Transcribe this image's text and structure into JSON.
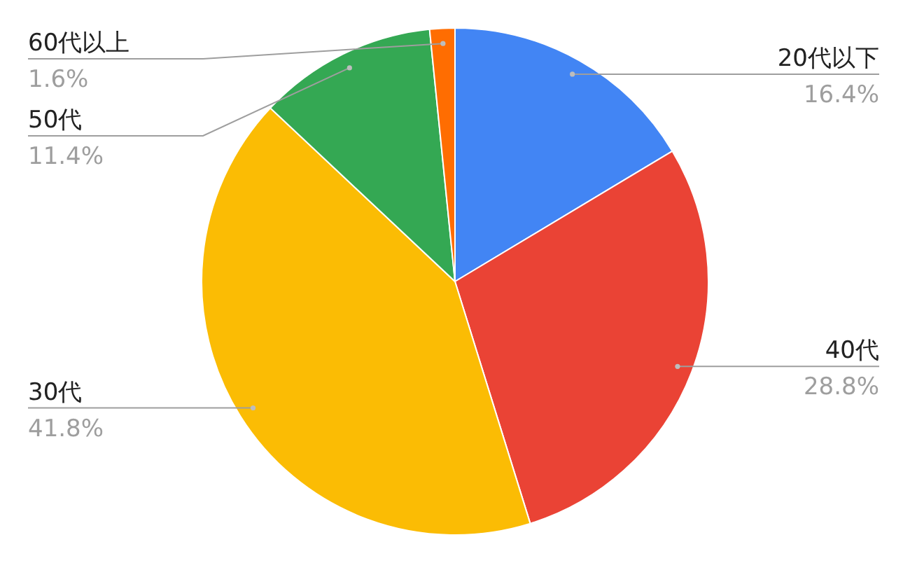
{
  "chart_data": {
    "type": "pie",
    "categories": [
      "20代以下",
      "40代",
      "30代",
      "50代",
      "60代以上"
    ],
    "values": [
      16.4,
      28.8,
      41.8,
      11.4,
      1.6
    ],
    "colors": [
      "#4285f4",
      "#ea4335",
      "#fbbc04",
      "#34a853",
      "#ff6d01"
    ],
    "value_labels": [
      "16.4%",
      "28.8%",
      "41.8%",
      "11.4%",
      "1.6%"
    ]
  }
}
